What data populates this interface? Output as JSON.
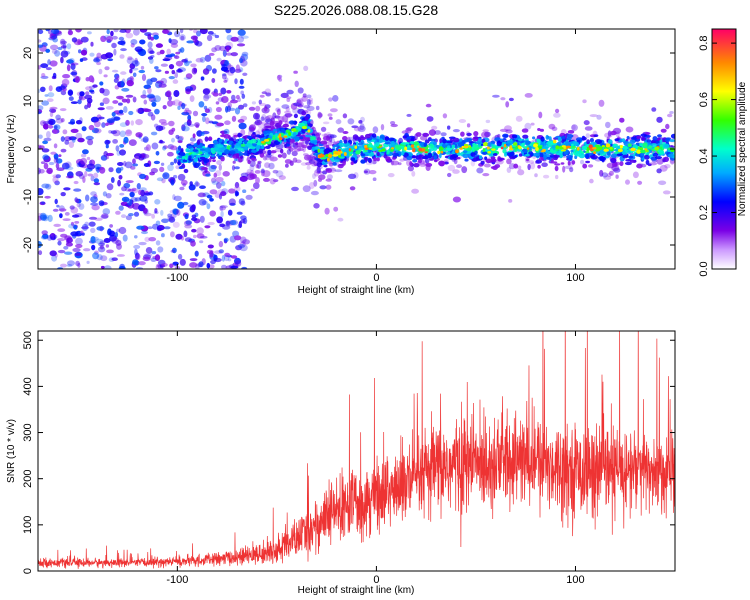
{
  "page": {
    "title": "S225.2026.088.08.15.G28"
  },
  "chart_data": [
    {
      "type": "heatmap",
      "title": "S225.2026.088.08.15.G28",
      "xlabel": "Height of straight line (km)",
      "ylabel": "Frequency (Hz)",
      "xlim": [
        -170,
        150
      ],
      "ylim": [
        -25,
        25
      ],
      "x_ticks": [
        -100,
        0,
        100
      ],
      "y_ticks": [
        -20,
        -10,
        0,
        10,
        20
      ],
      "x_tick_labels": [
        "-100",
        "0",
        "100"
      ],
      "y_tick_labels": [
        "-20",
        "-10",
        "0",
        "10",
        "20"
      ],
      "colorbar": {
        "label": "Normalized spectral amplitude",
        "range": [
          0,
          0.85
        ],
        "ticks": [
          0,
          0.2,
          0.4,
          0.6,
          0.8
        ],
        "tick_labels": [
          "0.0",
          "0.2",
          "0.4",
          "0.6",
          "0.8"
        ],
        "colormap": "rainbow"
      },
      "ridge": {
        "description": "frequency ridge",
        "x": [
          -100,
          -80,
          -60,
          -45,
          -35,
          -30,
          -25,
          -20,
          -10,
          0,
          20,
          40,
          60,
          80,
          100,
          120,
          150
        ],
        "y": [
          -2,
          0,
          1,
          3,
          5,
          0,
          -2,
          -1,
          0,
          0.5,
          0,
          0,
          0,
          0.5,
          0,
          0,
          0
        ]
      }
    },
    {
      "type": "line",
      "xlabel": "Height of straight line (km)",
      "ylabel": "SNR (10 * v/v)",
      "xlim": [
        -170,
        150
      ],
      "ylim": [
        0,
        520
      ],
      "x_ticks": [
        -100,
        0,
        100
      ],
      "y_ticks": [
        0,
        100,
        200,
        300,
        400,
        500
      ],
      "x_tick_labels": [
        "-100",
        "0",
        "100"
      ],
      "y_tick_labels": [
        "0",
        "100",
        "200",
        "300",
        "400",
        "500"
      ],
      "color": "#ee3333",
      "envelope": {
        "x": [
          -170,
          -120,
          -90,
          -70,
          -60,
          -50,
          -40,
          -30,
          -20,
          -10,
          0,
          10,
          20,
          30,
          40,
          50,
          60,
          70,
          80,
          90,
          100,
          110,
          120,
          130,
          140,
          150
        ],
        "mean": [
          18,
          18,
          22,
          30,
          35,
          45,
          70,
          100,
          130,
          150,
          165,
          180,
          195,
          220,
          230,
          235,
          240,
          240,
          235,
          230,
          220,
          215,
          215,
          220,
          215,
          210
        ],
        "noise": [
          8,
          8,
          10,
          14,
          18,
          24,
          35,
          50,
          60,
          65,
          70,
          75,
          80,
          85,
          90,
          90,
          90,
          85,
          85,
          85,
          80,
          85,
          85,
          80,
          75,
          75
        ]
      }
    }
  ]
}
